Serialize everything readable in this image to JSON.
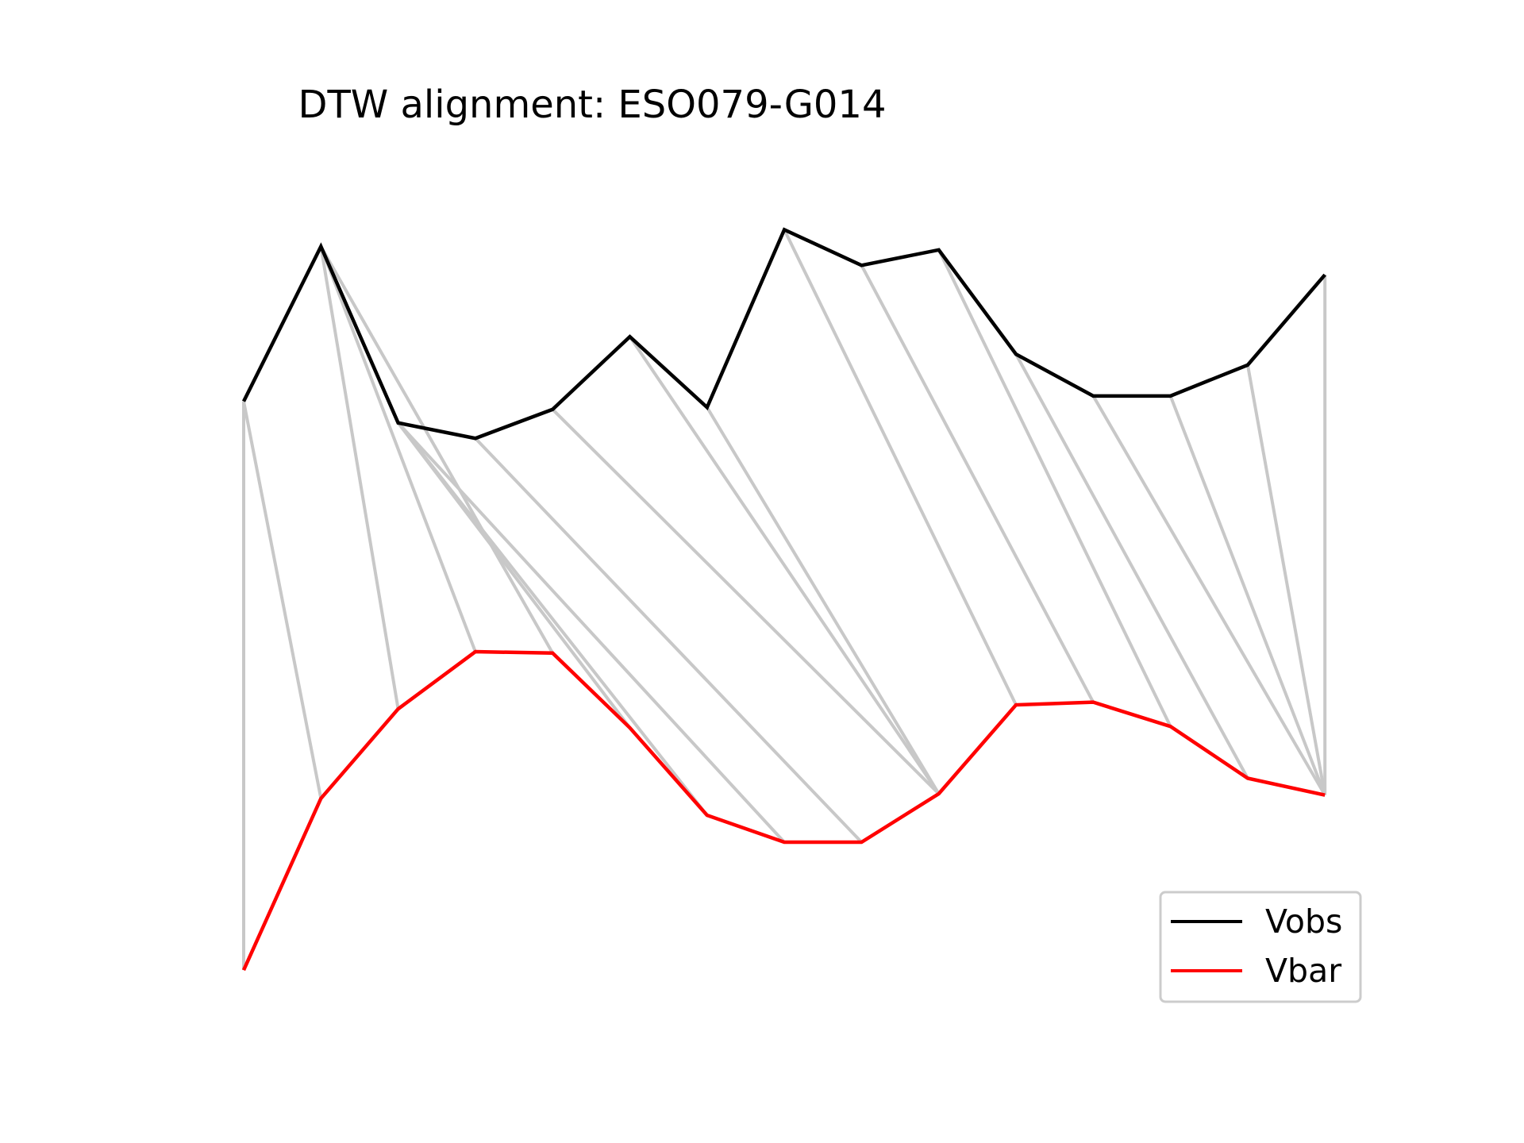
{
  "chart_data": {
    "type": "line",
    "title": "DTW alignment: ESO079-G014",
    "xlabel": "",
    "ylabel": "",
    "axes_visible": false,
    "grid": false,
    "legend_position": "lower right",
    "x": [
      0,
      1,
      2,
      3,
      4,
      5,
      6,
      7,
      8,
      9,
      10,
      11,
      12,
      13,
      14
    ],
    "series": [
      {
        "name": "Vobs",
        "color": "#000000",
        "values": [
          6.0,
          8.3,
          5.68,
          5.45,
          5.88,
          6.96,
          5.91,
          8.55,
          8.02,
          8.25,
          6.7,
          6.08,
          6.08,
          6.54,
          7.88
        ]
      },
      {
        "name": "Vbar",
        "color": "#ff0000",
        "values": [
          -2.45,
          0.1,
          1.43,
          2.28,
          2.26,
          1.15,
          -0.15,
          -0.55,
          -0.55,
          0.17,
          1.49,
          1.53,
          1.17,
          0.4,
          0.15
        ]
      }
    ],
    "alignment": {
      "color": "#c8c8c8",
      "pairs": [
        [
          0,
          0
        ],
        [
          0,
          1
        ],
        [
          1,
          2
        ],
        [
          1,
          3
        ],
        [
          1,
          4
        ],
        [
          2,
          5
        ],
        [
          2,
          6
        ],
        [
          2,
          7
        ],
        [
          3,
          8
        ],
        [
          4,
          9
        ],
        [
          5,
          9
        ],
        [
          6,
          9
        ],
        [
          7,
          10
        ],
        [
          8,
          11
        ],
        [
          9,
          12
        ],
        [
          10,
          13
        ],
        [
          11,
          14
        ],
        [
          12,
          14
        ],
        [
          13,
          14
        ],
        [
          14,
          14
        ]
      ]
    }
  }
}
